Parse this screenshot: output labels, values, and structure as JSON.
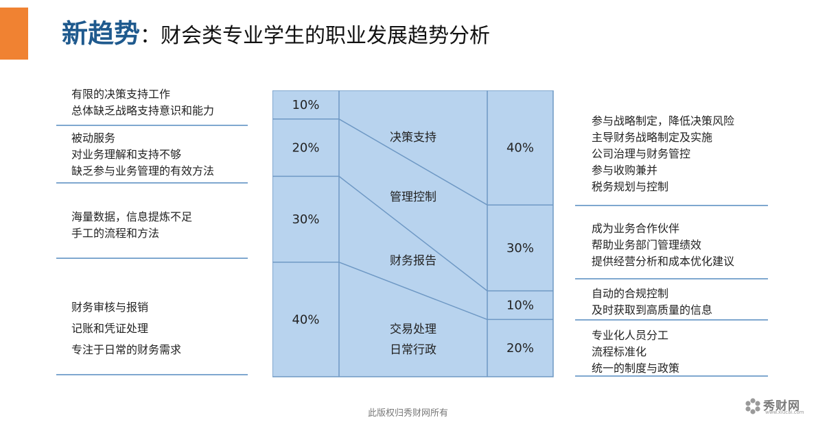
{
  "title": {
    "lead": "新趋势",
    "separator": "：",
    "subtitle": "财会类专业学生的职业发展趋势分析"
  },
  "left_groups": [
    {
      "lines": [
        "有限的决策支持工作",
        "总体缺乏战略支持意识和能力"
      ]
    },
    {
      "lines": [
        "被动服务",
        "对业务理解和支持不够",
        "缺乏参与业务管理的有效方法"
      ]
    },
    {
      "lines": [
        "海量数据，信息提炼不足",
        "手工的流程和方法"
      ]
    },
    {
      "lines": [
        "财务审核与报销",
        "记账和凭证处理",
        "专注于日常的财务需求"
      ]
    }
  ],
  "diagram": {
    "left_percents": [
      "10%",
      "20%",
      "30%",
      "40%"
    ],
    "left_shares": [
      10,
      20,
      30,
      40
    ],
    "middle_labels": [
      "决策支持",
      "管理控制",
      "财务报告",
      "交易处理",
      "日常行政"
    ],
    "right_percents": [
      "40%",
      "30%",
      "10%",
      "20%"
    ],
    "right_shares": [
      40,
      30,
      10,
      20
    ]
  },
  "right_groups": [
    {
      "lines": [
        "参与战略制定，降低决策风险",
        "主导财务战略制定及实施",
        "公司治理与财务管控",
        "参与收购兼并",
        "税务规划与控制"
      ]
    },
    {
      "lines": [
        "成为业务合作伙伴",
        "帮助业务部门管理绩效",
        "提供经营分析和成本优化建议"
      ]
    },
    {
      "lines": [
        "自动的合规控制",
        "及时获取到高质量的信息"
      ]
    },
    {
      "lines": [
        "专业化人员分工",
        "流程标准化",
        "统一的制度与政策"
      ]
    }
  ],
  "footer": "此版权归秀财网所有",
  "logo": {
    "name": "秀财网",
    "url": "www.xiucai.com"
  },
  "colors": {
    "accent": "#f08232",
    "title_blue": "#1f5a8e",
    "diagram_fill": "#b8d3ee",
    "diagram_stroke": "#6e98c4",
    "divider": "#7ea7cf"
  }
}
